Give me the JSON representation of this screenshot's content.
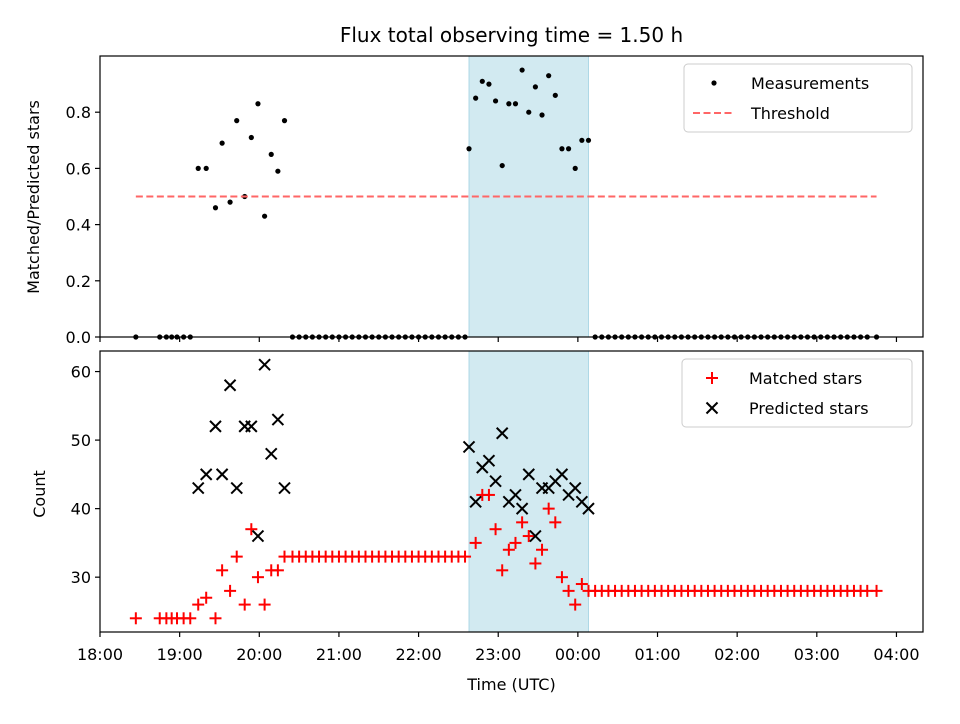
{
  "chart_data": [
    {
      "type": "scatter",
      "title": "Flux total observing time = 1.50 h",
      "xlabel": "",
      "ylabel": "Matched/Predicted stars",
      "ylim": [
        0,
        1.0
      ],
      "yticks": [
        "0.0",
        "0.2",
        "0.4",
        "0.6",
        "0.8"
      ],
      "xlim": [
        "18:00",
        "04:20"
      ],
      "shaded_span": {
        "start": "22:38",
        "end": "00:08",
        "color": "#add8e6"
      },
      "legend": {
        "placement": "top-right",
        "entries": [
          "Measurements",
          "Threshold"
        ]
      },
      "series": [
        {
          "name": "Measurements",
          "marker": "dot",
          "color": "#000000",
          "x": [
            "18:27",
            "18:45",
            "18:50",
            "18:54",
            "18:58",
            "19:03",
            "19:08",
            "19:14",
            "19:20",
            "19:27",
            "19:32",
            "19:38",
            "19:43",
            "19:49",
            "19:54",
            "19:59",
            "20:04",
            "20:09",
            "20:14",
            "20:19",
            "20:25",
            "20:30",
            "20:35",
            "20:40",
            "20:45",
            "20:50",
            "20:55",
            "21:00",
            "21:05",
            "21:10",
            "21:15",
            "21:20",
            "21:25",
            "21:30",
            "21:35",
            "21:40",
            "21:45",
            "21:50",
            "21:55",
            "22:00",
            "22:05",
            "22:10",
            "22:15",
            "22:20",
            "22:25",
            "22:30",
            "22:35",
            "22:38",
            "22:43",
            "22:48",
            "22:53",
            "22:58",
            "23:03",
            "23:08",
            "23:13",
            "23:18",
            "23:23",
            "23:28",
            "23:33",
            "23:38",
            "23:43",
            "23:48",
            "23:53",
            "23:58",
            "00:03",
            "00:08",
            "00:13",
            "00:18",
            "00:23",
            "00:28",
            "00:33",
            "00:38",
            "00:43",
            "00:48",
            "00:53",
            "00:58",
            "01:03",
            "01:08",
            "01:13",
            "01:18",
            "01:23",
            "01:28",
            "01:33",
            "01:38",
            "01:43",
            "01:48",
            "01:53",
            "01:58",
            "02:03",
            "02:08",
            "02:13",
            "02:18",
            "02:23",
            "02:28",
            "02:33",
            "02:38",
            "02:43",
            "02:48",
            "02:53",
            "02:58",
            "03:03",
            "03:08",
            "03:13",
            "03:18",
            "03:23",
            "03:28",
            "03:33",
            "03:38",
            "03:45"
          ],
          "y": [
            0,
            0,
            0,
            0,
            0,
            0,
            0,
            0.6,
            0.6,
            0.46,
            0.69,
            0.48,
            0.77,
            0.5,
            0.71,
            0.83,
            0.43,
            0.65,
            0.59,
            0.77,
            0,
            0,
            0,
            0,
            0,
            0,
            0,
            0,
            0,
            0,
            0,
            0,
            0,
            0,
            0,
            0,
            0,
            0,
            0,
            0,
            0,
            0,
            0,
            0,
            0,
            0,
            0,
            0.67,
            0.85,
            0.91,
            0.9,
            0.84,
            0.61,
            0.83,
            0.83,
            0.95,
            0.8,
            0.89,
            0.79,
            0.93,
            0.86,
            0.67,
            0.67,
            0.6,
            0.7,
            0.7,
            0,
            0,
            0,
            0,
            0,
            0,
            0,
            0,
            0,
            0,
            0,
            0,
            0,
            0,
            0,
            0,
            0,
            0,
            0,
            0,
            0,
            0,
            0,
            0,
            0,
            0,
            0,
            0,
            0,
            0,
            0,
            0,
            0,
            0,
            0,
            0,
            0,
            0,
            0,
            0,
            0,
            0,
            0
          ]
        },
        {
          "name": "Threshold",
          "style": "dashed",
          "color": "#ff6666",
          "x": [
            "18:27",
            "03:45"
          ],
          "y": [
            0.5,
            0.5
          ]
        }
      ]
    },
    {
      "type": "scatter",
      "title": "",
      "xlabel": "Time (UTC)",
      "ylabel": "Count",
      "ylim": [
        22,
        63
      ],
      "yticks": [
        "30",
        "40",
        "50",
        "60"
      ],
      "xticks": [
        "18:00",
        "19:00",
        "20:00",
        "21:00",
        "22:00",
        "23:00",
        "00:00",
        "01:00",
        "02:00",
        "03:00",
        "04:00"
      ],
      "xlim": [
        "18:00",
        "04:20"
      ],
      "shaded_span": {
        "start": "22:38",
        "end": "00:08",
        "color": "#add8e6"
      },
      "legend": {
        "placement": "top-right",
        "entries": [
          "Matched stars",
          "Predicted stars"
        ]
      },
      "series": [
        {
          "name": "Matched stars",
          "marker": "plus",
          "color": "#ff0000",
          "x": [
            "18:27",
            "18:45",
            "18:50",
            "18:54",
            "18:58",
            "19:03",
            "19:08",
            "19:14",
            "19:20",
            "19:27",
            "19:32",
            "19:38",
            "19:43",
            "19:49",
            "19:54",
            "19:59",
            "20:04",
            "20:09",
            "20:14",
            "20:19",
            "20:25",
            "20:30",
            "20:35",
            "20:40",
            "20:45",
            "20:50",
            "20:55",
            "21:00",
            "21:05",
            "21:10",
            "21:15",
            "21:20",
            "21:25",
            "21:30",
            "21:35",
            "21:40",
            "21:45",
            "21:50",
            "21:55",
            "22:00",
            "22:05",
            "22:10",
            "22:15",
            "22:20",
            "22:25",
            "22:30",
            "22:35",
            "22:43",
            "22:48",
            "22:53",
            "22:58",
            "23:03",
            "23:08",
            "23:13",
            "23:18",
            "23:23",
            "23:28",
            "23:33",
            "23:38",
            "23:43",
            "23:48",
            "23:53",
            "23:58",
            "00:03",
            "00:08",
            "00:13",
            "00:18",
            "00:23",
            "00:28",
            "00:33",
            "00:38",
            "00:43",
            "00:48",
            "00:53",
            "00:58",
            "01:03",
            "01:08",
            "01:13",
            "01:18",
            "01:23",
            "01:28",
            "01:33",
            "01:38",
            "01:43",
            "01:48",
            "01:53",
            "01:58",
            "02:03",
            "02:08",
            "02:13",
            "02:18",
            "02:23",
            "02:28",
            "02:33",
            "02:38",
            "02:43",
            "02:48",
            "02:53",
            "02:58",
            "03:03",
            "03:08",
            "03:13",
            "03:18",
            "03:23",
            "03:28",
            "03:33",
            "03:38",
            "03:45"
          ],
          "y": [
            24,
            24,
            24,
            24,
            24,
            24,
            24,
            26,
            27,
            24,
            31,
            28,
            33,
            26,
            37,
            30,
            26,
            31,
            31,
            33,
            33,
            33,
            33,
            33,
            33,
            33,
            33,
            33,
            33,
            33,
            33,
            33,
            33,
            33,
            33,
            33,
            33,
            33,
            33,
            33,
            33,
            33,
            33,
            33,
            33,
            33,
            33,
            35,
            42,
            42,
            37,
            31,
            34,
            35,
            38,
            36,
            32,
            34,
            40,
            38,
            30,
            28,
            26,
            29,
            28,
            28,
            28,
            28,
            28,
            28,
            28,
            28,
            28,
            28,
            28,
            28,
            28,
            28,
            28,
            28,
            28,
            28,
            28,
            28,
            28,
            28,
            28,
            28,
            28,
            28,
            28,
            28,
            28,
            28,
            28,
            28,
            28,
            28,
            28,
            28,
            28,
            28,
            28,
            28,
            28,
            28,
            28,
            28
          ]
        },
        {
          "name": "Predicted stars",
          "marker": "x",
          "color": "#000000",
          "x": [
            "19:14",
            "19:20",
            "19:27",
            "19:32",
            "19:38",
            "19:43",
            "19:49",
            "19:54",
            "19:59",
            "20:04",
            "20:09",
            "20:14",
            "20:19",
            "22:38",
            "22:43",
            "22:48",
            "22:53",
            "22:58",
            "23:03",
            "23:08",
            "23:13",
            "23:18",
            "23:23",
            "23:28",
            "23:33",
            "23:38",
            "23:43",
            "23:48",
            "23:53",
            "23:58",
            "00:03",
            "00:08"
          ],
          "y": [
            43,
            45,
            52,
            45,
            58,
            43,
            52,
            52,
            36,
            61,
            48,
            53,
            43,
            49,
            41,
            46,
            47,
            44,
            51,
            41,
            42,
            40,
            45,
            36,
            43,
            43,
            44,
            45,
            42,
            43,
            41,
            40
          ]
        }
      ]
    }
  ]
}
